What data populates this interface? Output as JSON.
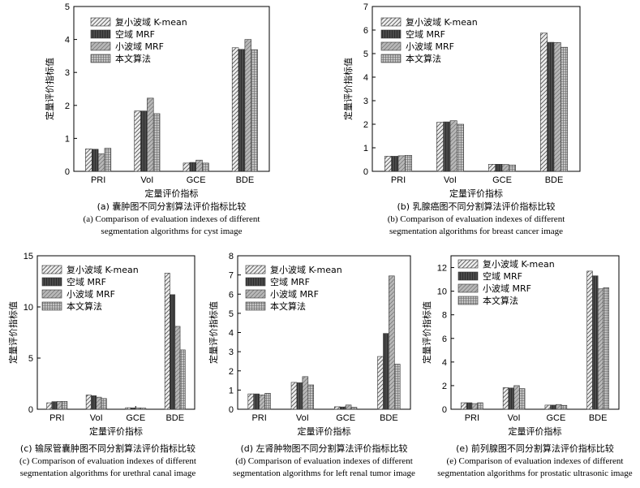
{
  "chart_data": [
    {
      "type": "bar",
      "categories": [
        "PRI",
        "VoI",
        "GCE",
        "BDE"
      ],
      "ylim": [
        0,
        5
      ],
      "yticks": [
        0,
        1,
        2,
        3,
        4,
        5
      ],
      "ylabel": "定量评价指标值",
      "xlabel": "定量评价指标",
      "series": [
        {
          "name": "复小波域 K-mean",
          "values": [
            0.68,
            1.83,
            0.25,
            3.75
          ]
        },
        {
          "name": "空域 MRF",
          "values": [
            0.67,
            1.83,
            0.27,
            3.7
          ]
        },
        {
          "name": "小波域 MRF",
          "values": [
            0.53,
            2.22,
            0.34,
            4.0
          ]
        },
        {
          "name": "本文算法",
          "values": [
            0.7,
            1.75,
            0.25,
            3.69
          ]
        }
      ],
      "caption_cn": "(a) 囊肿图不同分割算法评价指标比较",
      "caption_en_1": "(a) Comparison of evaluation indexes of different",
      "caption_en_2": "segmentation algorithms for cyst image"
    },
    {
      "type": "bar",
      "categories": [
        "PRI",
        "VoI",
        "GCE",
        "BDE"
      ],
      "ylim": [
        0,
        7
      ],
      "yticks": [
        0,
        1,
        2,
        3,
        4,
        5,
        6,
        7
      ],
      "ylabel": "定量评价指标值",
      "xlabel": "定量评价指标",
      "series": [
        {
          "name": "复小波域 K-mean",
          "values": [
            0.64,
            2.08,
            0.3,
            5.87
          ]
        },
        {
          "name": "空域 MRF",
          "values": [
            0.64,
            2.1,
            0.3,
            5.48
          ]
        },
        {
          "name": "小波域 MRF",
          "values": [
            0.66,
            2.15,
            0.29,
            5.47
          ]
        },
        {
          "name": "本文算法",
          "values": [
            0.68,
            2.0,
            0.27,
            5.27
          ]
        }
      ],
      "caption_cn": "(b) 乳腺癌图不同分割算法评价指标比较",
      "caption_en_1": "(b) Comparison of evaluation indexes of different",
      "caption_en_2": "segmentation algorithms for breast cancer image"
    },
    {
      "type": "bar",
      "categories": [
        "PRI",
        "VoI",
        "GCE",
        "BDE"
      ],
      "ylim": [
        0,
        15
      ],
      "yticks": [
        0,
        5,
        10,
        15
      ],
      "ylabel": "定量评价指标值",
      "xlabel": "定量评价指标",
      "series": [
        {
          "name": "复小波域 K-mean",
          "values": [
            0.63,
            1.4,
            0.15,
            13.3
          ]
        },
        {
          "name": "空域 MRF",
          "values": [
            0.74,
            1.32,
            0.13,
            11.2
          ]
        },
        {
          "name": "小波域 MRF",
          "values": [
            0.76,
            1.18,
            0.13,
            8.1
          ]
        },
        {
          "name": "本文算法",
          "values": [
            0.77,
            1.05,
            0.11,
            5.8
          ]
        }
      ],
      "caption_cn": "(c) 输尿管囊肿图不同分割算法评价指标比较",
      "caption_en_1": "(c) Comparison of evaluation indexes of different",
      "caption_en_2": "segmentation algorithms for urethral canal image"
    },
    {
      "type": "bar",
      "categories": [
        "PRI",
        "VoI",
        "GCE",
        "BDE"
      ],
      "ylim": [
        0,
        8
      ],
      "yticks": [
        0,
        1,
        2,
        3,
        4,
        5,
        6,
        7,
        8
      ],
      "ylabel": "定量评价指标值",
      "xlabel": "定量评价指标",
      "series": [
        {
          "name": "复小波域 K-mean",
          "values": [
            0.8,
            1.4,
            0.13,
            2.75
          ]
        },
        {
          "name": "空域 MRF",
          "values": [
            0.8,
            1.38,
            0.12,
            3.95
          ]
        },
        {
          "name": "小波域 MRF",
          "values": [
            0.75,
            1.7,
            0.22,
            6.95
          ]
        },
        {
          "name": "本文算法",
          "values": [
            0.83,
            1.27,
            0.1,
            2.35
          ]
        }
      ],
      "caption_cn": "(d) 左肾肿物图不同分割算法评价指标比较",
      "caption_en_1": "(d) Comparison of evaluation indexes of different",
      "caption_en_2": "segmentation algorithms for left renal tumor image"
    },
    {
      "type": "bar",
      "categories": [
        "PRI",
        "VoI",
        "GCE",
        "BDE"
      ],
      "ylim": [
        0,
        13
      ],
      "yticks": [
        0,
        2,
        4,
        6,
        8,
        10,
        12
      ],
      "ylabel": "定量评价指标值",
      "xlabel": "定量评价指标",
      "series": [
        {
          "name": "复小波域 K-mean",
          "values": [
            0.55,
            1.83,
            0.35,
            11.7
          ]
        },
        {
          "name": "空域 MRF",
          "values": [
            0.55,
            1.8,
            0.35,
            11.3
          ]
        },
        {
          "name": "小波域 MRF",
          "values": [
            0.48,
            2.0,
            0.4,
            10.2
          ]
        },
        {
          "name": "本文算法",
          "values": [
            0.55,
            1.75,
            0.33,
            10.3
          ]
        }
      ],
      "caption_cn": "(e) 前列腺图不同分割算法评价指标比较",
      "caption_en_1": "(e) Comparison of evaluation indexes of different",
      "caption_en_2": "segmentation algorithms for prostatic ultrasonic image"
    }
  ]
}
